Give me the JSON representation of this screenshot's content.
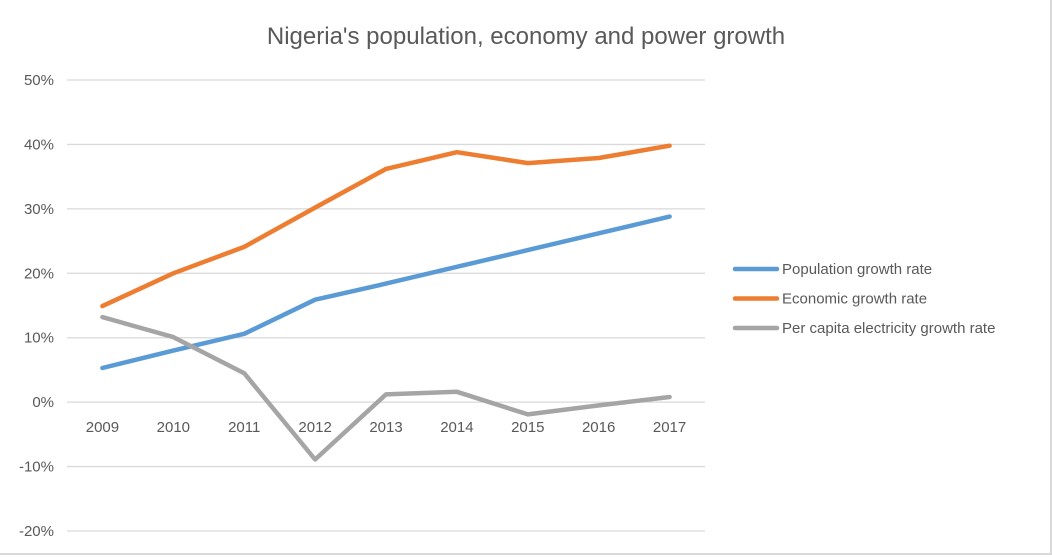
{
  "chart_data": {
    "type": "line",
    "title": "Nigeria's population, economy and power growth",
    "xlabel": "",
    "ylabel": "",
    "categories": [
      "2009",
      "2010",
      "2011",
      "2012",
      "2013",
      "2014",
      "2015",
      "2016",
      "2017"
    ],
    "ylim": [
      -0.2,
      0.5
    ],
    "yticks": [
      0.5,
      0.4,
      0.3,
      0.2,
      0.1,
      0.0,
      -0.1,
      -0.2
    ],
    "ytick_labels": [
      "50%",
      "40%",
      "30%",
      "20%",
      "10%",
      "0%",
      "-10%",
      "-20%"
    ],
    "grid": true,
    "legend_position": "right",
    "series": [
      {
        "name": "Population growth rate",
        "color": "#5b9bd5",
        "values": [
          0.053,
          0.08,
          0.106,
          0.159,
          0.184,
          0.21,
          0.236,
          0.262,
          0.288
        ]
      },
      {
        "name": "Economic growth rate",
        "color": "#ed7d31",
        "values": [
          0.149,
          0.2,
          0.241,
          0.302,
          0.362,
          0.388,
          0.371,
          0.379,
          0.398
        ]
      },
      {
        "name": "Per capita electricity growth rate",
        "color": "#a5a5a5",
        "values": [
          0.132,
          0.101,
          0.045,
          -0.089,
          0.012,
          0.016,
          -0.019,
          -0.005,
          0.008
        ]
      }
    ]
  }
}
